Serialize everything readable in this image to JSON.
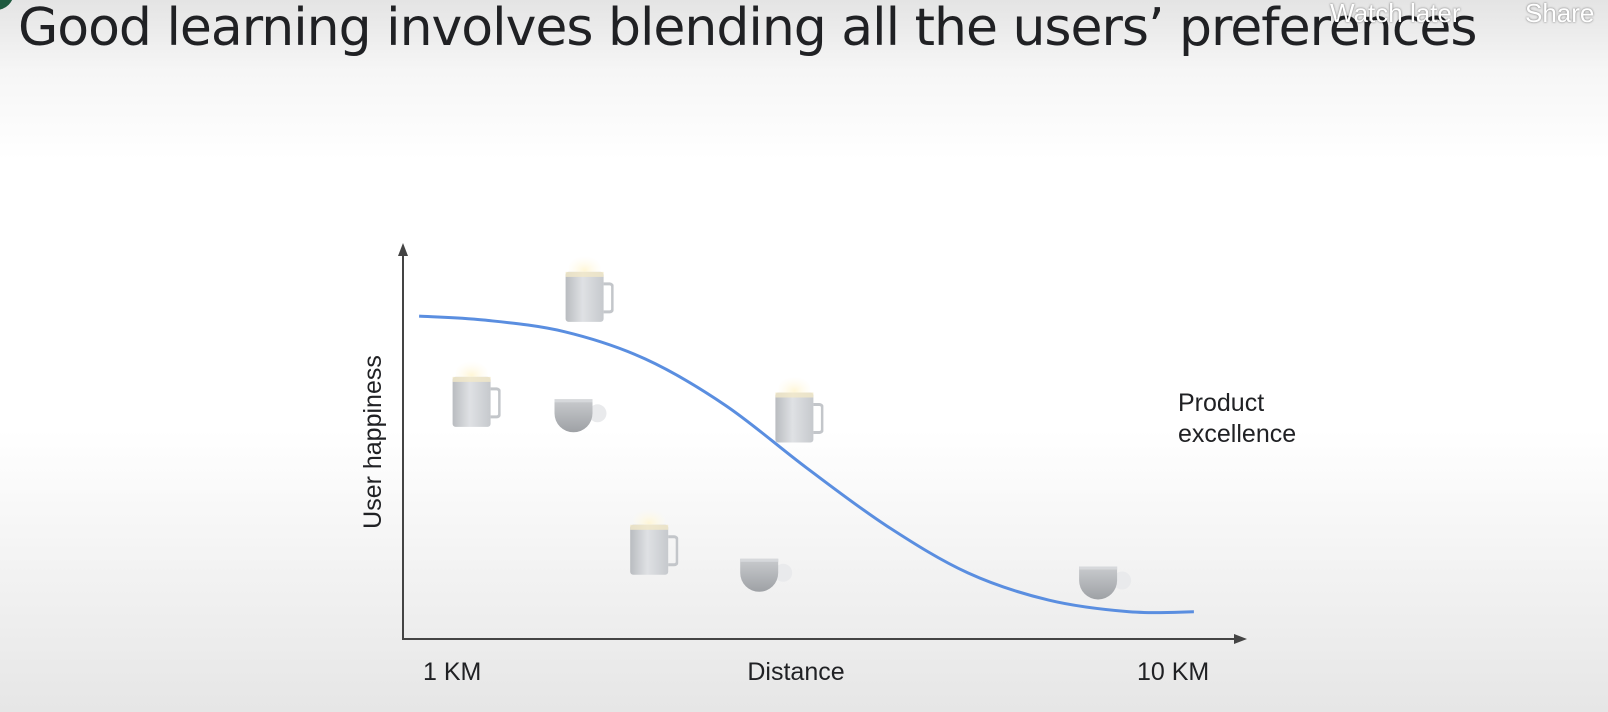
{
  "slide": {
    "title": "Good learning involves blending all the users’ preferences"
  },
  "player_controls": {
    "watch_later": "Watch later",
    "share": "Share"
  },
  "chart_data": {
    "type": "line",
    "xlabel": "Distance",
    "ylabel": "User happiness",
    "x_tick_labels": [
      "1 KM",
      "10 KM"
    ],
    "annotation": [
      "Product",
      "excellence"
    ],
    "curve_color": "#5a8ee0",
    "series": [
      {
        "x": [
          0.02,
          0.1,
          0.2,
          0.3,
          0.4,
          0.5,
          0.6,
          0.7,
          0.8,
          0.9,
          0.98
        ],
        "y": [
          0.83,
          0.82,
          0.79,
          0.72,
          0.6,
          0.44,
          0.29,
          0.17,
          0.1,
          0.07,
          0.07
        ]
      }
    ],
    "xlim": [
      0,
      1
    ],
    "ylim": [
      0,
      1
    ],
    "items": [
      {
        "icon": "mug-icon",
        "x": 0.09,
        "y": 0.63
      },
      {
        "icon": "cup-icon",
        "x": 0.22,
        "y": 0.57
      },
      {
        "icon": "mug-icon",
        "x": 0.23,
        "y": 0.9
      },
      {
        "icon": "mug-icon",
        "x": 0.31,
        "y": 0.25
      },
      {
        "icon": "cup-icon",
        "x": 0.45,
        "y": 0.16
      },
      {
        "icon": "mug-icon",
        "x": 0.49,
        "y": 0.59
      },
      {
        "icon": "cup-icon",
        "x": 0.87,
        "y": 0.14
      }
    ]
  }
}
